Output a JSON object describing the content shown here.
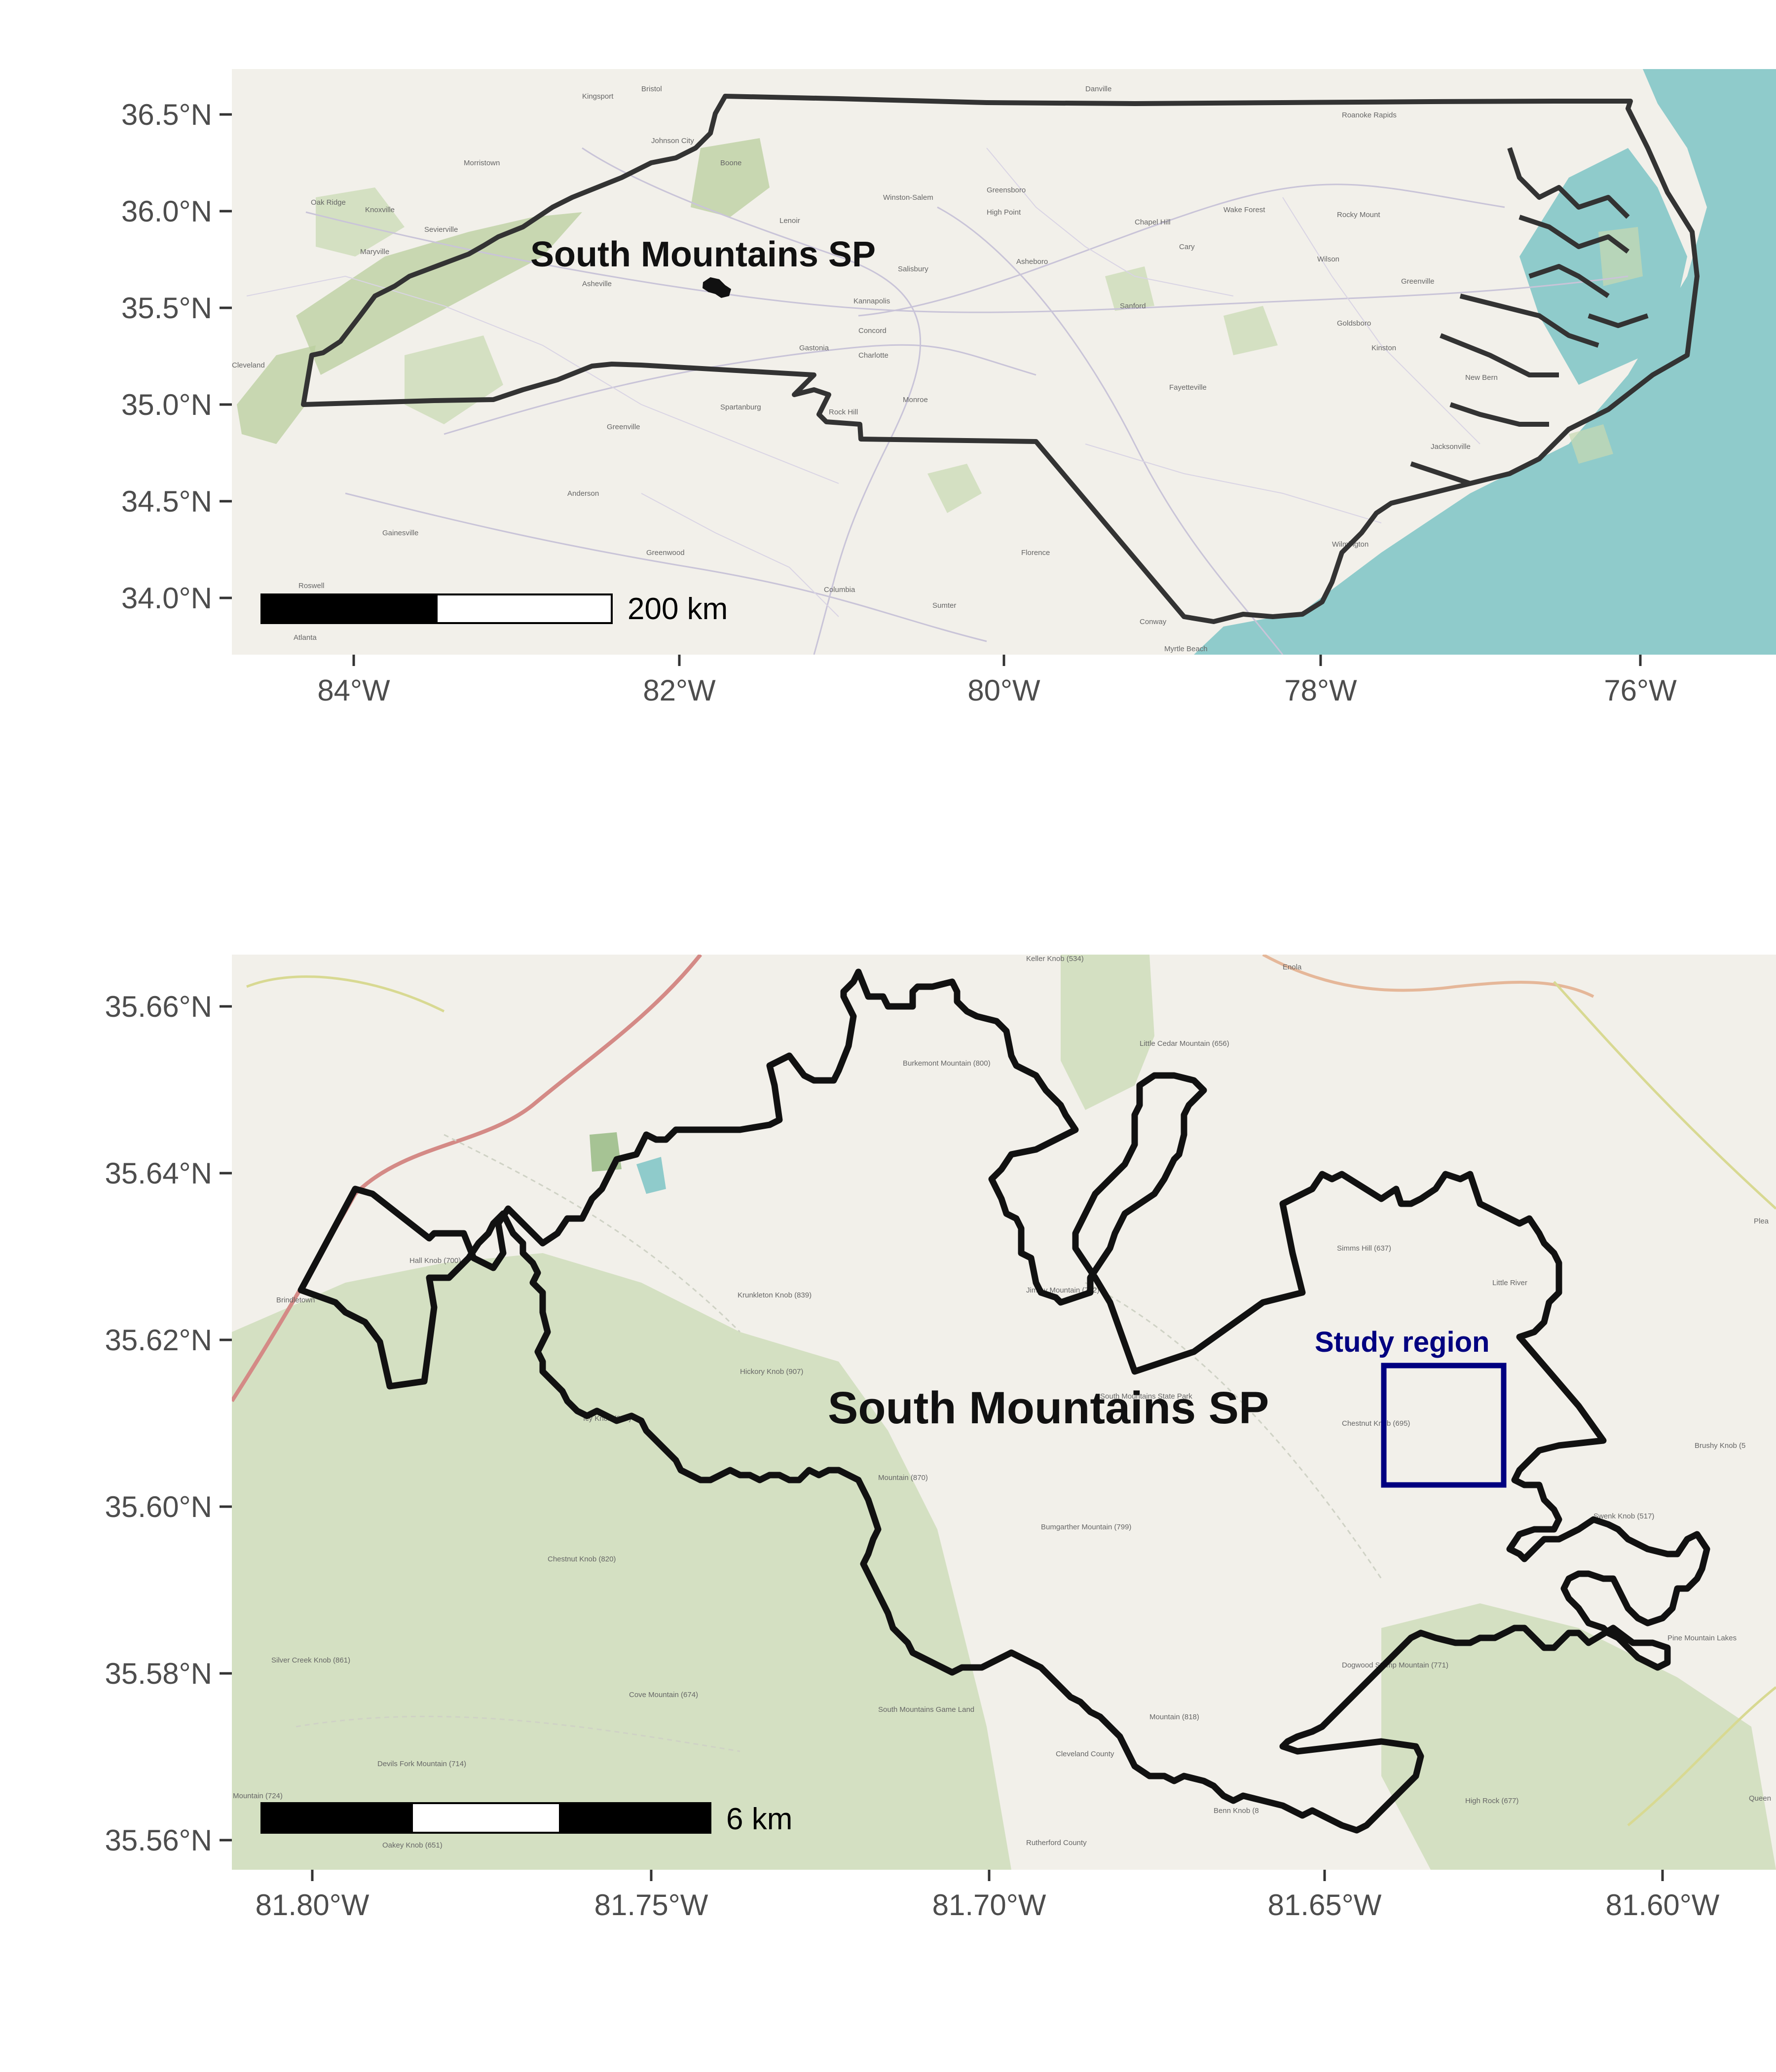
{
  "top_map": {
    "label": "South Mountains SP",
    "scalebar_label": "200 km",
    "x_ticks": [
      "84°W",
      "82°W",
      "80°W",
      "78°W",
      "76°W"
    ],
    "y_ticks": [
      "36.5°N",
      "36.0°N",
      "35.5°N",
      "35.0°N",
      "34.5°N",
      "34.0°N"
    ],
    "basemap_places": [
      {
        "name": "Kingsport"
      },
      {
        "name": "Bristol"
      },
      {
        "name": "Johnson City"
      },
      {
        "name": "Boone"
      },
      {
        "name": "Danville"
      },
      {
        "name": "Roanoke Rapids"
      },
      {
        "name": "Oak Ridge"
      },
      {
        "name": "Knoxville"
      },
      {
        "name": "Morristown"
      },
      {
        "name": "Sevierville"
      },
      {
        "name": "Maryville"
      },
      {
        "name": "Asheville"
      },
      {
        "name": "Lenoir"
      },
      {
        "name": "Winston-Salem"
      },
      {
        "name": "Greensboro"
      },
      {
        "name": "High Point"
      },
      {
        "name": "Chapel Hill"
      },
      {
        "name": "Wake Forest"
      },
      {
        "name": "Rocky Mount"
      },
      {
        "name": "Salisbury"
      },
      {
        "name": "Asheboro"
      },
      {
        "name": "Cary"
      },
      {
        "name": "Wilson"
      },
      {
        "name": "Greenville"
      },
      {
        "name": "Kannapolis"
      },
      {
        "name": "Sanford"
      },
      {
        "name": "Goldsboro"
      },
      {
        "name": "Concord"
      },
      {
        "name": "Gastonia"
      },
      {
        "name": "Charlotte"
      },
      {
        "name": "Kinston"
      },
      {
        "name": "New Bern"
      },
      {
        "name": "Spartanburg"
      },
      {
        "name": "Monroe"
      },
      {
        "name": "Fayetteville"
      },
      {
        "name": "Greenville"
      },
      {
        "name": "Rock Hill"
      },
      {
        "name": "Jacksonville"
      },
      {
        "name": "Anderson"
      },
      {
        "name": "Gainesville"
      },
      {
        "name": "Greenwood"
      },
      {
        "name": "Florence"
      },
      {
        "name": "Wilmington"
      },
      {
        "name": "Roswell"
      },
      {
        "name": "Columbia"
      },
      {
        "name": "Sumter"
      },
      {
        "name": "Conway"
      },
      {
        "name": "Atlanta"
      },
      {
        "name": "Myrtle Beach"
      },
      {
        "name": "Cleveland"
      }
    ]
  },
  "bottom_map": {
    "label": "South Mountains SP",
    "study_label": "Study region",
    "scalebar_label": "6 km",
    "x_ticks": [
      "81.80°W",
      "81.75°W",
      "81.70°W",
      "81.65°W",
      "81.60°W"
    ],
    "y_ticks": [
      "35.66°N",
      "35.64°N",
      "35.62°N",
      "35.60°N",
      "35.58°N",
      "35.56°N"
    ],
    "basemap_places": [
      {
        "name": "Keller Knob (534)"
      },
      {
        "name": "Enola"
      },
      {
        "name": "Burkemont Mountain (800)"
      },
      {
        "name": "Little Cedar Mountain (656)"
      },
      {
        "name": "Hall Knob (700)"
      },
      {
        "name": "Brindletown"
      },
      {
        "name": "Krunkleton Knob (839)"
      },
      {
        "name": "Jimmy Mountain (782)"
      },
      {
        "name": "Simms Hill (637)"
      },
      {
        "name": "Little River"
      },
      {
        "name": "Hickory Knob (907)"
      },
      {
        "name": "Icy Knob (860)"
      },
      {
        "name": "Chestnut Knob (695)"
      },
      {
        "name": "Brushy Knob (5"
      },
      {
        "name": "Mountain (870)"
      },
      {
        "name": "South Mountains State Park"
      },
      {
        "name": "Swenk Knob (517)"
      },
      {
        "name": "Bumgarther Mountain (799)"
      },
      {
        "name": "Chestnut Knob (820)"
      },
      {
        "name": "Silver Creek Knob (861)"
      },
      {
        "name": "Dogwood Stump Mountain (771)"
      },
      {
        "name": "Pine Mountain Lakes"
      },
      {
        "name": "Cove Mountain (674)"
      },
      {
        "name": "Mountain (818)"
      },
      {
        "name": "South Mountains Game Land"
      },
      {
        "name": "Cleveland County"
      },
      {
        "name": "Devils Fork Mountain (714)"
      },
      {
        "name": "Mountain (724)"
      },
      {
        "name": "Rutherford County"
      },
      {
        "name": "Benn Knob (8"
      },
      {
        "name": "High Rock (677)"
      },
      {
        "name": "Oakey Knob (651)"
      },
      {
        "name": "Queen"
      },
      {
        "name": "Plea"
      }
    ]
  },
  "colors": {
    "land": "#f2f0ea",
    "water": "#8fcbcb",
    "park_fill": "#e3e8da",
    "study_region": "#000080",
    "state_outline": "#333333",
    "park_outline": "#111111"
  }
}
